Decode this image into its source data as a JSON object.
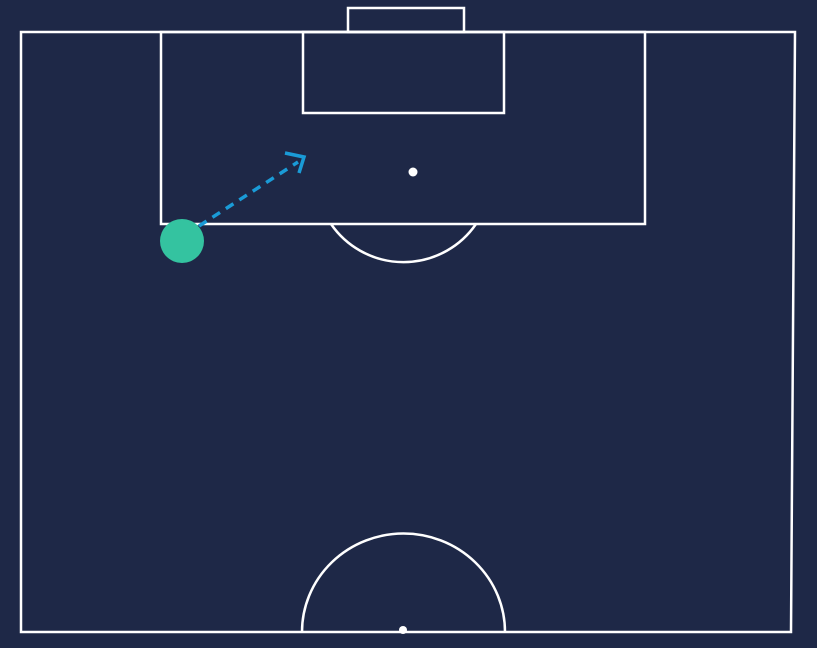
{
  "colors": {
    "background": "#1e2847",
    "pitch_lines": "#ffffff",
    "player": "#34c3a0",
    "pass_arrow": "#1a9bd7"
  },
  "pitch": {
    "orientation": "half-pitch-attacking-up",
    "markings": [
      "touchlines",
      "goal",
      "penalty-area",
      "goal-area",
      "penalty-spot",
      "penalty-arc",
      "center-circle",
      "center-spot"
    ]
  },
  "player": {
    "icon": "player-dot"
  },
  "pass": {
    "style": "dashed",
    "icon": "pass-arrow"
  }
}
